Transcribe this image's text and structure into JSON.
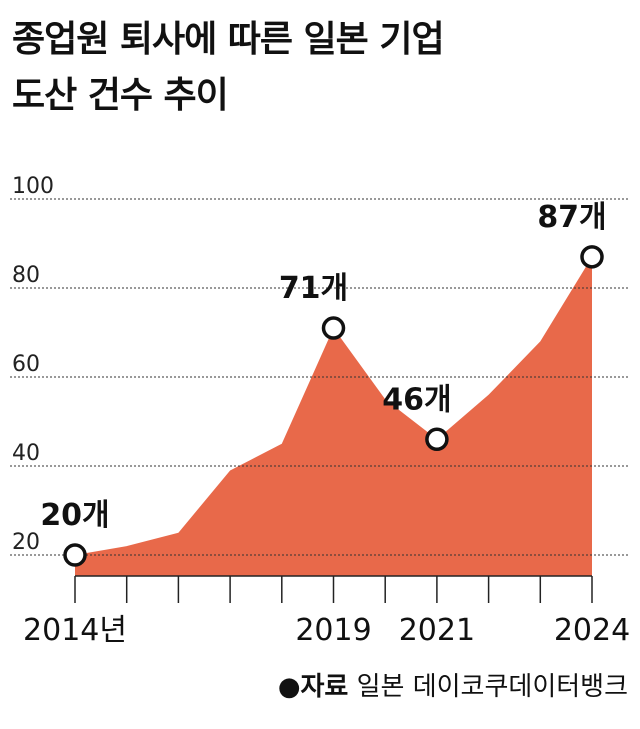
{
  "title_lines": [
    "종업원 퇴사에 따른 일본 기업",
    "도산 건수 추이"
  ],
  "source": {
    "bullet": "●",
    "label": "자료",
    "text": " 일본 데이코쿠데이터뱅크"
  },
  "chart_data": {
    "type": "area",
    "title": "종업원 퇴사에 따른 일본 기업 도산 건수 추이",
    "x": [
      2014,
      2015,
      2016,
      2017,
      2018,
      2019,
      2020,
      2021,
      2022,
      2023,
      2024
    ],
    "values": [
      20,
      22,
      25,
      39,
      45,
      71,
      55,
      46,
      56,
      68,
      87
    ],
    "ylim": [
      0,
      100
    ],
    "yticks": [
      20,
      40,
      60,
      80,
      100
    ],
    "xtick_labels": [
      "2014년",
      "",
      "",
      "",
      "",
      "2019",
      "",
      "2021",
      "",
      "",
      "2024"
    ],
    "grid": true,
    "fill_color": "#E8694A",
    "annotations": [
      {
        "index": 0,
        "label": "20개"
      },
      {
        "index": 5,
        "label": "71개"
      },
      {
        "index": 7,
        "label": "46개"
      },
      {
        "index": 10,
        "label": "87개"
      }
    ]
  }
}
